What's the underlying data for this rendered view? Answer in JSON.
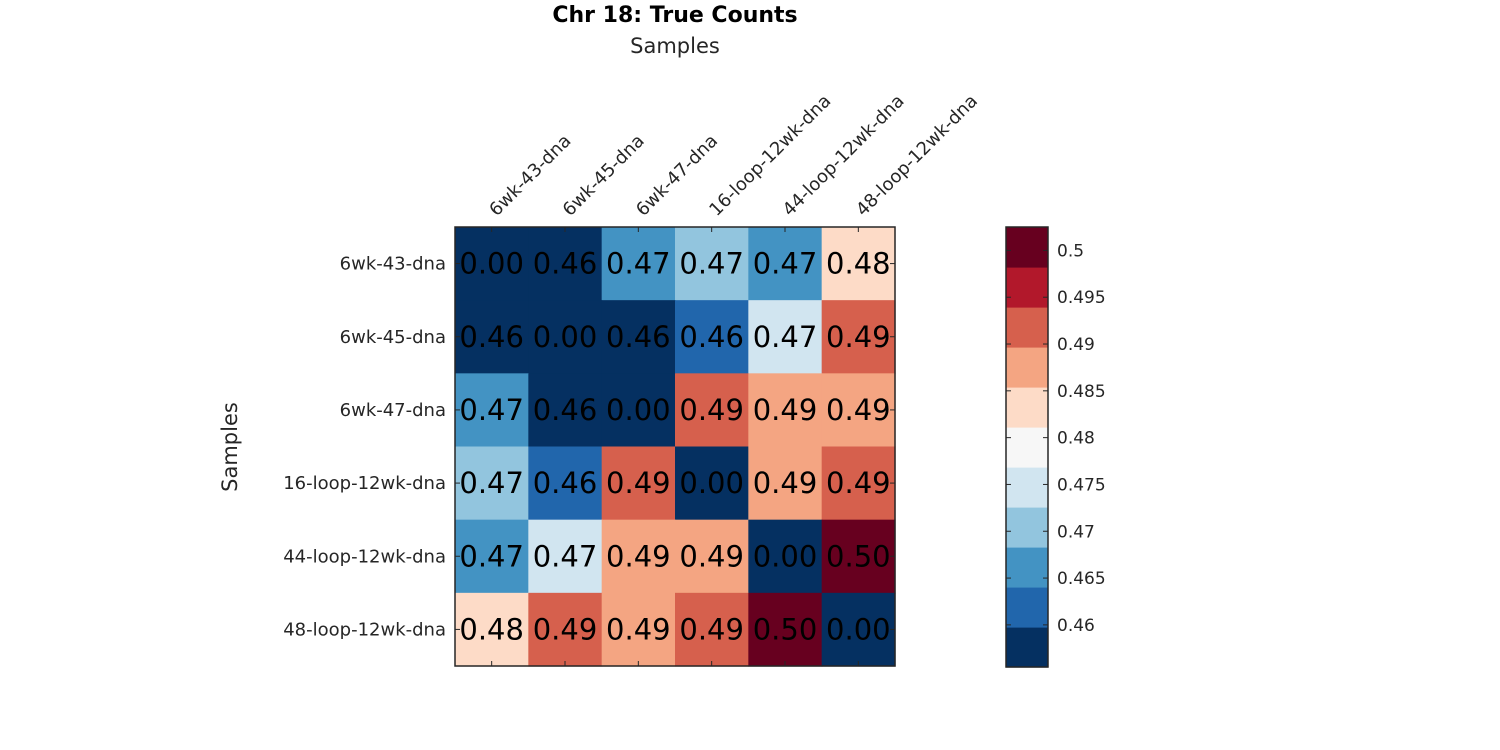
{
  "chart_data": {
    "type": "heatmap",
    "title": "Chr 18: True Counts",
    "xlabel": "Samples",
    "ylabel": "Samples",
    "x_categories": [
      "6wk-43-dna",
      "6wk-45-dna",
      "6wk-47-dna",
      "16-loop-12wk-dna",
      "44-loop-12wk-dna",
      "48-loop-12wk-dna"
    ],
    "y_categories": [
      "6wk-43-dna",
      "6wk-45-dna",
      "6wk-47-dna",
      "16-loop-12wk-dna",
      "44-loop-12wk-dna",
      "48-loop-12wk-dna"
    ],
    "values": [
      [
        0.0,
        0.46,
        0.47,
        0.47,
        0.47,
        0.48
      ],
      [
        0.46,
        0.0,
        0.46,
        0.46,
        0.47,
        0.49
      ],
      [
        0.47,
        0.46,
        0.0,
        0.49,
        0.49,
        0.49
      ],
      [
        0.47,
        0.46,
        0.49,
        0.0,
        0.49,
        0.49
      ],
      [
        0.47,
        0.47,
        0.49,
        0.49,
        0.0,
        0.5
      ],
      [
        0.48,
        0.49,
        0.49,
        0.49,
        0.5,
        0.0
      ]
    ],
    "cell_labels": [
      [
        "0.00",
        "0.46",
        "0.47",
        "0.47",
        "0.47",
        "0.48"
      ],
      [
        "0.46",
        "0.00",
        "0.46",
        "0.46",
        "0.47",
        "0.49"
      ],
      [
        "0.47",
        "0.46",
        "0.00",
        "0.49",
        "0.49",
        "0.49"
      ],
      [
        "0.47",
        "0.46",
        "0.49",
        "0.00",
        "0.49",
        "0.49"
      ],
      [
        "0.47",
        "0.47",
        "0.49",
        "0.49",
        "0.00",
        "0.50"
      ],
      [
        "0.48",
        "0.49",
        "0.49",
        "0.49",
        "0.50",
        "0.00"
      ]
    ],
    "cell_colors": [
      [
        "#053061",
        "#053061",
        "#4393c3",
        "#92c5de",
        "#4393c3",
        "#fddbc7"
      ],
      [
        "#053061",
        "#053061",
        "#053061",
        "#2166ac",
        "#d1e5f0",
        "#d6604d"
      ],
      [
        "#4393c3",
        "#053061",
        "#053061",
        "#d6604d",
        "#f4a582",
        "#f4a582"
      ],
      [
        "#92c5de",
        "#2166ac",
        "#d6604d",
        "#053061",
        "#f4a582",
        "#d6604d"
      ],
      [
        "#4393c3",
        "#d1e5f0",
        "#f4a582",
        "#f4a582",
        "#053061",
        "#67001f"
      ],
      [
        "#fddbc7",
        "#d6604d",
        "#f4a582",
        "#d6604d",
        "#67001f",
        "#053061"
      ]
    ],
    "colorbar": {
      "range": [
        0.4555,
        0.5025
      ],
      "colors": [
        "#053061",
        "#2166ac",
        "#4393c3",
        "#92c5de",
        "#d1e5f0",
        "#f7f7f7",
        "#fddbc7",
        "#f4a582",
        "#d6604d",
        "#b2182b",
        "#67001f"
      ],
      "ticks": [
        0.46,
        0.465,
        0.47,
        0.475,
        0.48,
        0.485,
        0.49,
        0.495,
        0.5
      ],
      "tick_labels": [
        "0.46",
        "0.465",
        "0.47",
        "0.475",
        "0.48",
        "0.485",
        "0.49",
        "0.495",
        "0.5"
      ]
    }
  }
}
